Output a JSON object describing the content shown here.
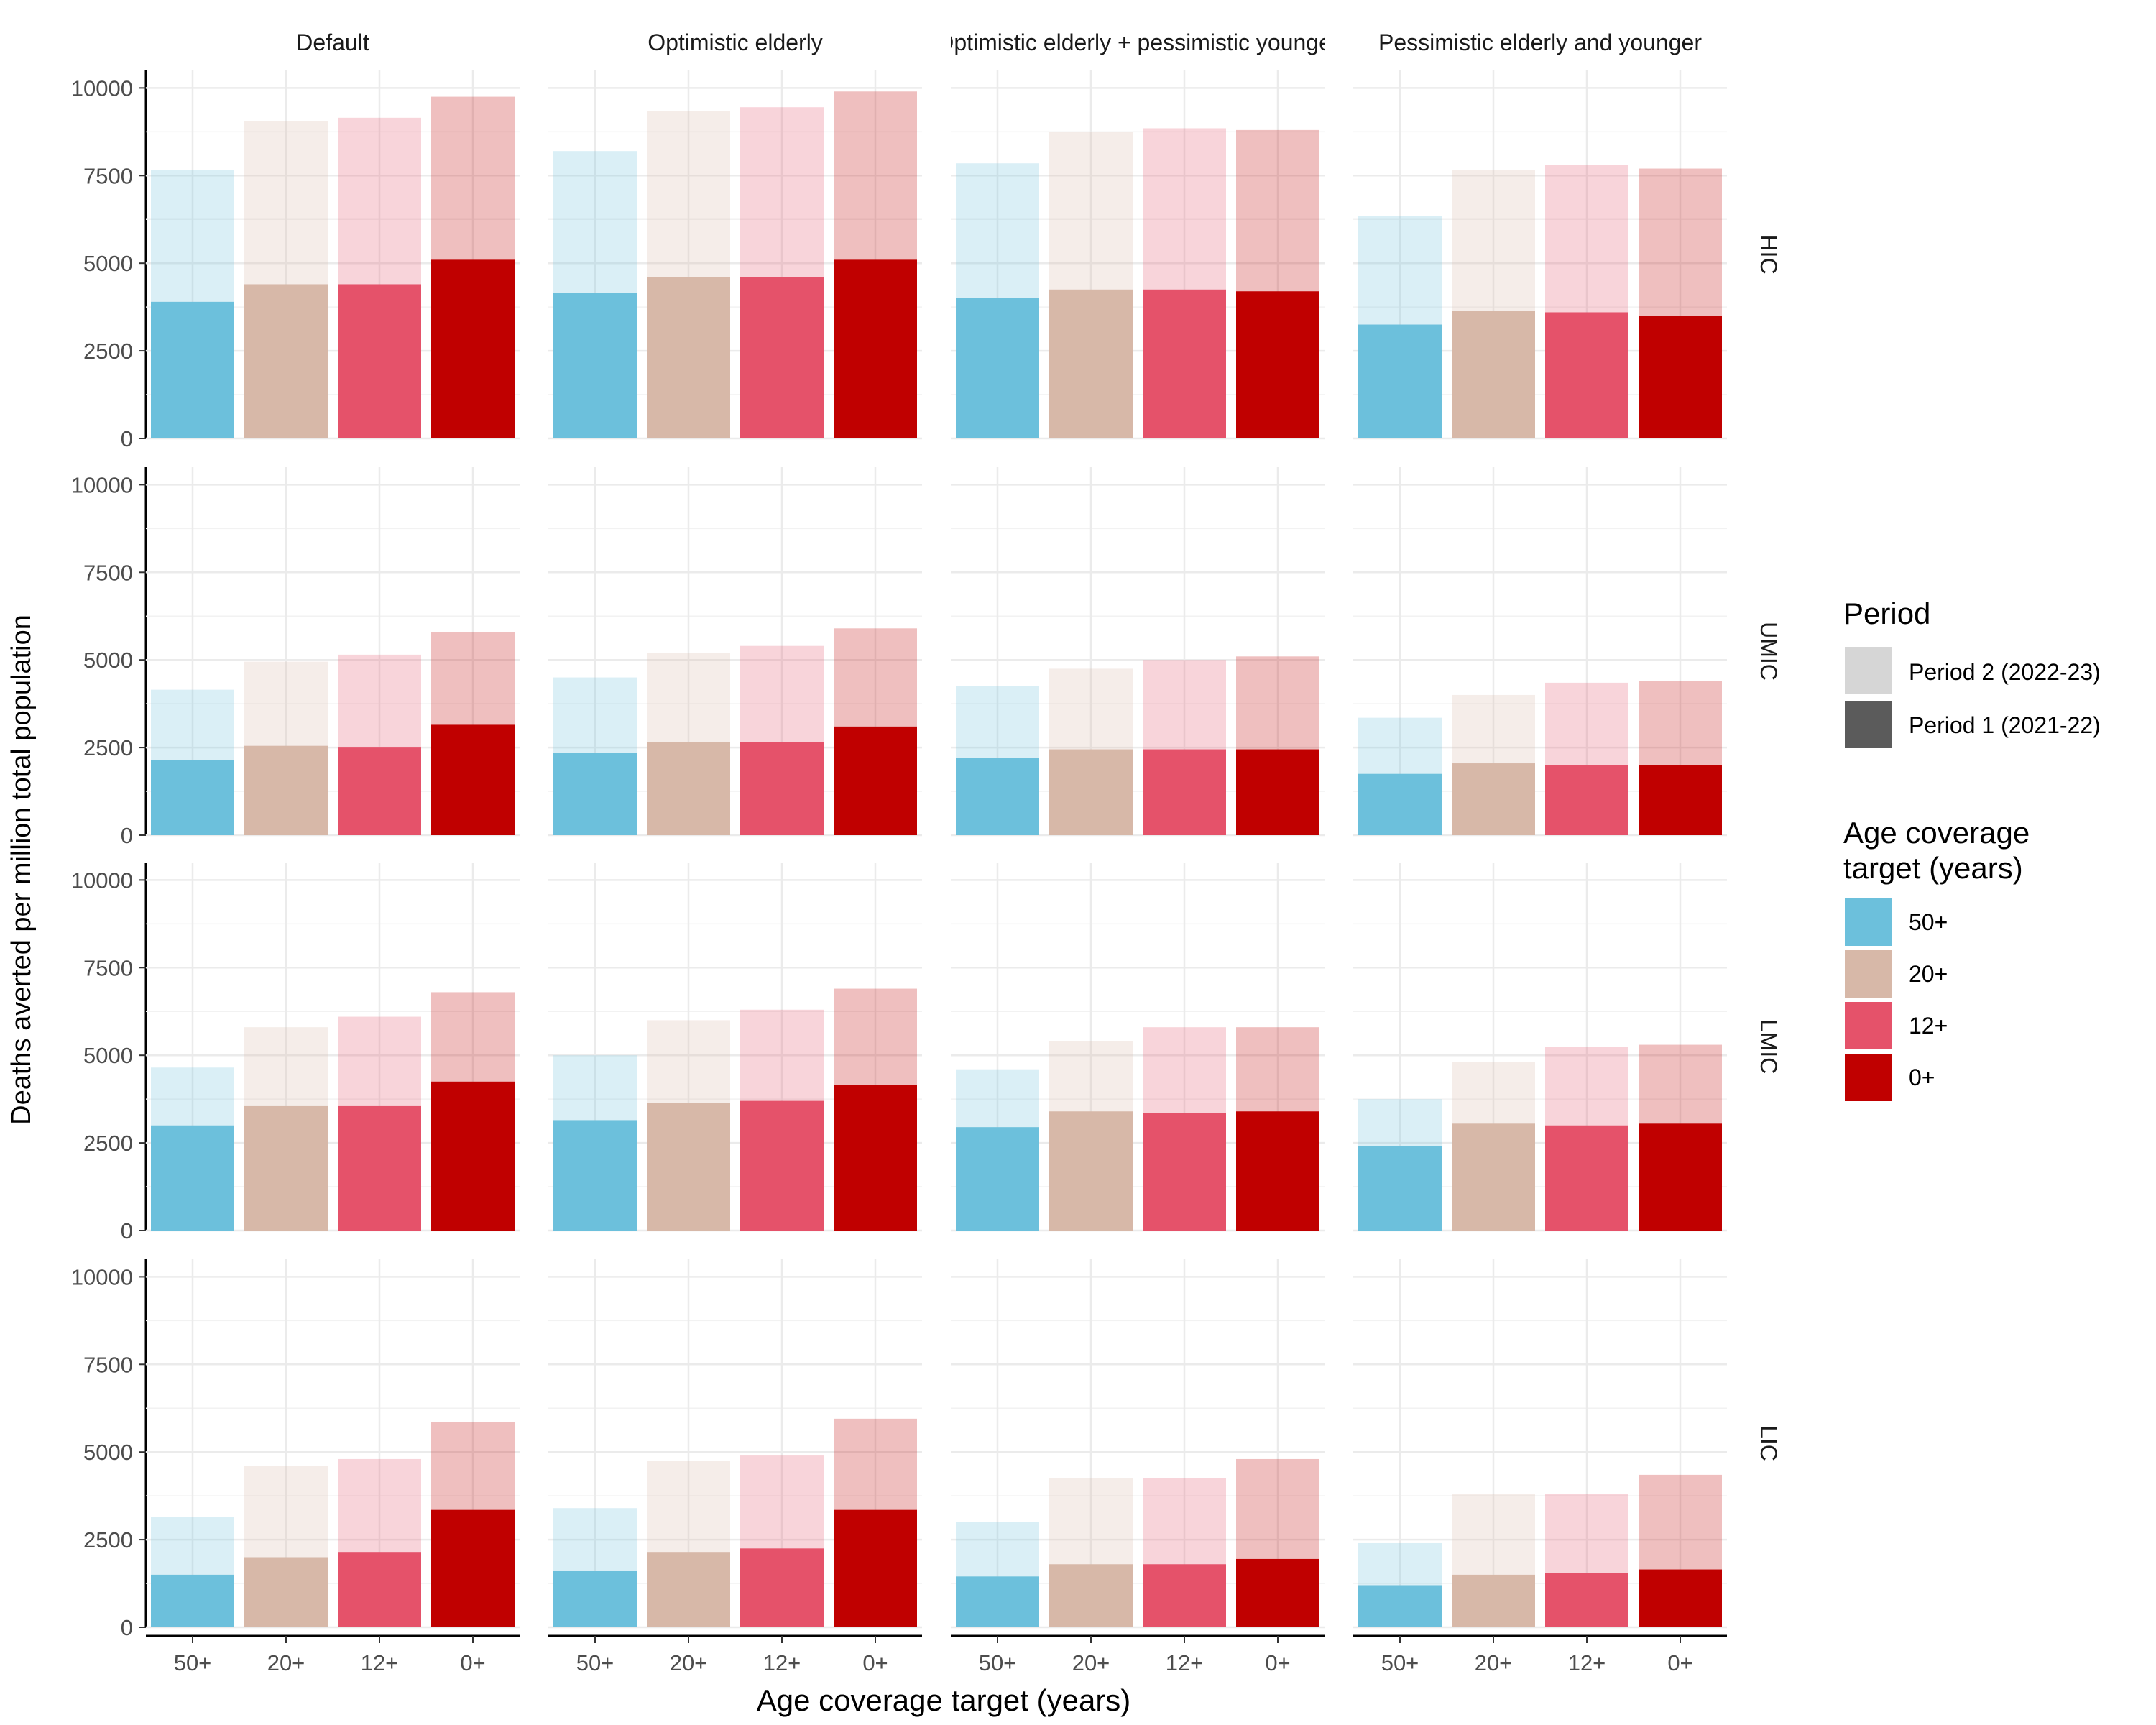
{
  "chart_data": {
    "type": "bar",
    "layout": "faceted grid, stacked bars (period 1 solid, period 2 faded on top)",
    "xlabel": "Age coverage target (years)",
    "ylabel": "Deaths averted per million total population",
    "ylim": [
      0,
      10500
    ],
    "yticks": [
      "0",
      "2500",
      "5000",
      "7500",
      "10000"
    ],
    "grid": true,
    "categories": [
      "50+",
      "20+",
      "12+",
      "0+"
    ],
    "column_facets": [
      "Default",
      "Optimistic elderly",
      "Optimistic elderly + pessimistic younger",
      "Pessimistic elderly and younger"
    ],
    "row_facets": [
      "HIC",
      "UMIC",
      "LMIC",
      "LIC"
    ],
    "colors": {
      "50+": "#6cc0dc",
      "20+": "#d7b8a8",
      "12+": "#e5526a",
      "0+": "#c00000"
    },
    "legend_period": {
      "title": "Period",
      "items": [
        "Period 2 (2022-23)",
        "Period 1 (2021-22)"
      ],
      "placement": "right"
    },
    "legend_age": {
      "title_line1": "Age coverage",
      "title_line2": "target (years)",
      "items": [
        "50+",
        "20+",
        "12+",
        "0+"
      ],
      "placement": "right"
    },
    "panels": {
      "HIC": {
        "Default": {
          "period1": [
            3900,
            4400,
            4400,
            5100
          ],
          "total": [
            7650,
            9050,
            9150,
            9750
          ]
        },
        "Optimistic elderly": {
          "period1": [
            4150,
            4600,
            4600,
            5100
          ],
          "total": [
            8200,
            9350,
            9450,
            9900
          ]
        },
        "Optimistic elderly + pessimistic younger": {
          "period1": [
            4000,
            4250,
            4250,
            4200
          ],
          "total": [
            7850,
            8750,
            8850,
            8800
          ]
        },
        "Pessimistic elderly and younger": {
          "period1": [
            3250,
            3650,
            3600,
            3500
          ],
          "total": [
            6350,
            7650,
            7800,
            7700
          ]
        }
      },
      "UMIC": {
        "Default": {
          "period1": [
            2150,
            2550,
            2500,
            3150
          ],
          "total": [
            4150,
            4950,
            5150,
            5800
          ]
        },
        "Optimistic elderly": {
          "period1": [
            2350,
            2650,
            2650,
            3100
          ],
          "total": [
            4500,
            5200,
            5400,
            5900
          ]
        },
        "Optimistic elderly + pessimistic younger": {
          "period1": [
            2200,
            2450,
            2450,
            2450
          ],
          "total": [
            4250,
            4750,
            5000,
            5100
          ]
        },
        "Pessimistic elderly and younger": {
          "period1": [
            1750,
            2050,
            2000,
            2000
          ],
          "total": [
            3350,
            4000,
            4350,
            4400
          ]
        }
      },
      "LMIC": {
        "Default": {
          "period1": [
            3000,
            3550,
            3550,
            4250
          ],
          "total": [
            4650,
            5800,
            6100,
            6800
          ]
        },
        "Optimistic elderly": {
          "period1": [
            3150,
            3650,
            3700,
            4150
          ],
          "total": [
            5000,
            6000,
            6300,
            6900
          ]
        },
        "Optimistic elderly + pessimistic younger": {
          "period1": [
            2950,
            3400,
            3350,
            3400
          ],
          "total": [
            4600,
            5400,
            5800,
            5800
          ]
        },
        "Pessimistic elderly and younger": {
          "period1": [
            2400,
            3050,
            3000,
            3050
          ],
          "total": [
            3750,
            4800,
            5250,
            5300
          ]
        }
      },
      "LIC": {
        "Default": {
          "period1": [
            1500,
            2000,
            2150,
            3350
          ],
          "total": [
            3150,
            4600,
            4800,
            5850
          ]
        },
        "Optimistic elderly": {
          "period1": [
            1600,
            2150,
            2250,
            3350
          ],
          "total": [
            3400,
            4750,
            4900,
            5950
          ]
        },
        "Optimistic elderly + pessimistic younger": {
          "period1": [
            1450,
            1800,
            1800,
            1950
          ],
          "total": [
            3000,
            4250,
            4250,
            4800
          ]
        },
        "Pessimistic elderly and younger": {
          "period1": [
            1200,
            1500,
            1550,
            1650
          ],
          "total": [
            2400,
            3800,
            3800,
            4350
          ]
        }
      }
    }
  }
}
